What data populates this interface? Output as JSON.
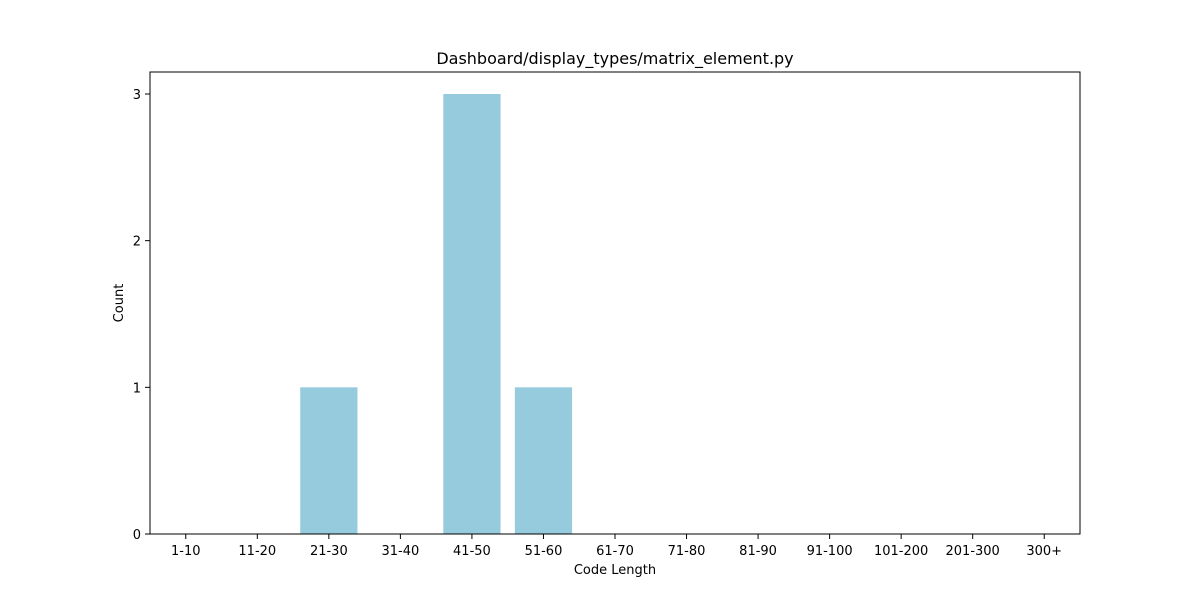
{
  "chart_data": {
    "type": "bar",
    "title": "Dashboard/display_types/matrix_element.py",
    "xlabel": "Code Length",
    "ylabel": "Count",
    "categories": [
      "1-10",
      "11-20",
      "21-30",
      "31-40",
      "41-50",
      "51-60",
      "61-70",
      "71-80",
      "81-90",
      "91-100",
      "101-200",
      "201-300",
      "300+"
    ],
    "values": [
      0,
      0,
      1,
      0,
      3,
      1,
      0,
      0,
      0,
      0,
      0,
      0,
      0
    ],
    "ylim": [
      0,
      3.15
    ],
    "yticks": [
      0,
      1,
      2,
      3
    ],
    "bar_color": "#96cadd",
    "grid": false,
    "legend": "none"
  }
}
